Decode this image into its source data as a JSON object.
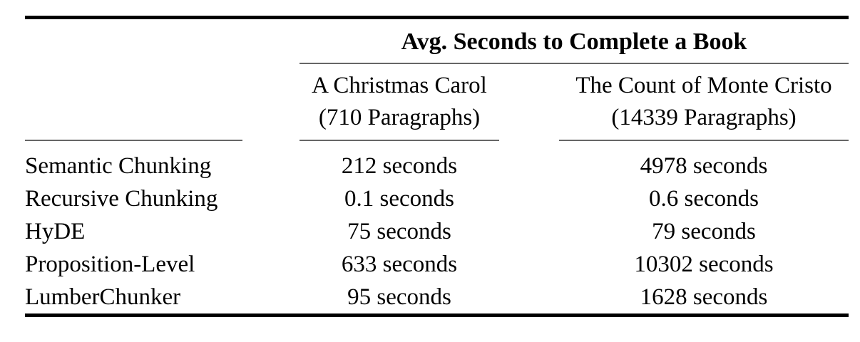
{
  "table": {
    "title": "Avg. Seconds to Complete a Book",
    "columns": [
      {
        "name": "A Christmas Carol",
        "subtitle": "(710 Paragraphs)"
      },
      {
        "name": "The Count of Monte Cristo",
        "subtitle": "(14339 Paragraphs)"
      }
    ],
    "rows": [
      {
        "label": "Semantic Chunking",
        "values": [
          "212 seconds",
          "4978 seconds"
        ]
      },
      {
        "label": "Recursive Chunking",
        "values": [
          "0.1 seconds",
          "0.6 seconds"
        ]
      },
      {
        "label": "HyDE",
        "values": [
          "75 seconds",
          "79 seconds"
        ]
      },
      {
        "label": "Proposition-Level",
        "values": [
          "633 seconds",
          "10302 seconds"
        ]
      },
      {
        "label": "LumberChunker",
        "values": [
          "95 seconds",
          "1628 seconds"
        ]
      }
    ],
    "colors": {
      "rule_heavy": "#000000",
      "rule_light": "#666666",
      "text": "#000000"
    }
  },
  "chart_data": {
    "type": "table",
    "title": "Avg. Seconds to Complete a Book",
    "categories": [
      "Semantic Chunking",
      "Recursive Chunking",
      "HyDE",
      "Proposition-Level",
      "LumberChunker"
    ],
    "series": [
      {
        "name": "A Christmas Carol (710 Paragraphs)",
        "unit": "seconds",
        "values": [
          212,
          0.1,
          75,
          633,
          95
        ]
      },
      {
        "name": "The Count of Monte Cristo (14339 Paragraphs)",
        "unit": "seconds",
        "values": [
          4978,
          0.6,
          79,
          10302,
          1628
        ]
      }
    ]
  }
}
